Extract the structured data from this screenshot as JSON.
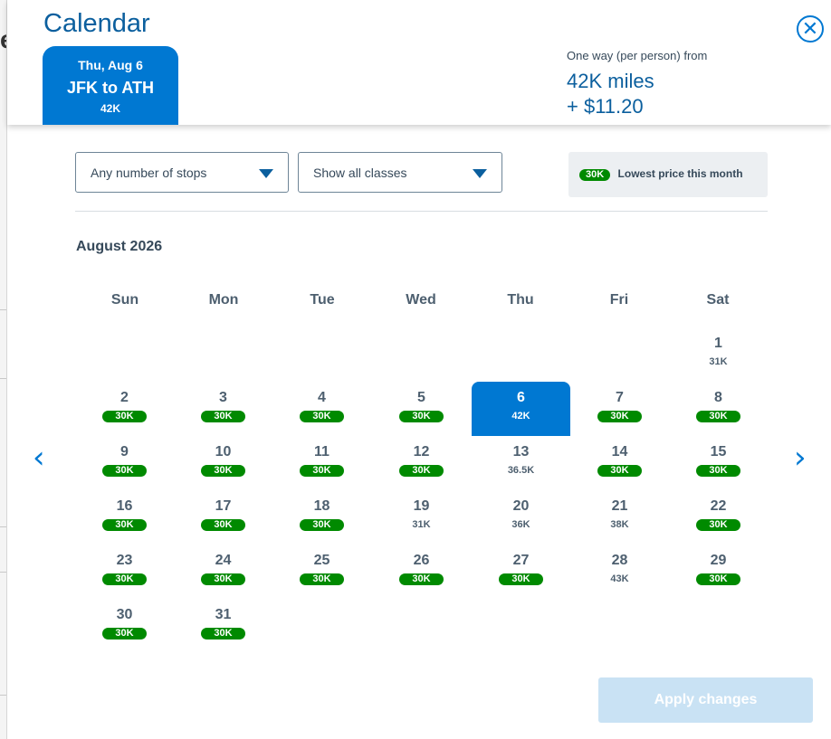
{
  "header": {
    "title": "Calendar",
    "close_label": "✕",
    "date_tab": {
      "date": "Thu, Aug 6",
      "route": "JFK to ATH",
      "price": "42K"
    },
    "fare": {
      "label": "One way (per person) from",
      "miles": "42K miles",
      "cash": "+ $11.20"
    }
  },
  "filters": {
    "stops": "Any number of stops",
    "classes": "Show all classes",
    "legend_price": "30K",
    "legend_text": "Lowest price this month"
  },
  "calendar": {
    "month_label": "August 2026",
    "weekdays": [
      "Sun",
      "Mon",
      "Tue",
      "Wed",
      "Thu",
      "Fri",
      "Sat"
    ],
    "start_weekday": 6,
    "selected_day": 6,
    "days": [
      {
        "day": "1",
        "price": "31K",
        "lowest": false
      },
      {
        "day": "2",
        "price": "30K",
        "lowest": true
      },
      {
        "day": "3",
        "price": "30K",
        "lowest": true
      },
      {
        "day": "4",
        "price": "30K",
        "lowest": true
      },
      {
        "day": "5",
        "price": "30K",
        "lowest": true
      },
      {
        "day": "6",
        "price": "42K",
        "lowest": false
      },
      {
        "day": "7",
        "price": "30K",
        "lowest": true
      },
      {
        "day": "8",
        "price": "30K",
        "lowest": true
      },
      {
        "day": "9",
        "price": "30K",
        "lowest": true
      },
      {
        "day": "10",
        "price": "30K",
        "lowest": true
      },
      {
        "day": "11",
        "price": "30K",
        "lowest": true
      },
      {
        "day": "12",
        "price": "30K",
        "lowest": true
      },
      {
        "day": "13",
        "price": "36.5K",
        "lowest": false
      },
      {
        "day": "14",
        "price": "30K",
        "lowest": true
      },
      {
        "day": "15",
        "price": "30K",
        "lowest": true
      },
      {
        "day": "16",
        "price": "30K",
        "lowest": true
      },
      {
        "day": "17",
        "price": "30K",
        "lowest": true
      },
      {
        "day": "18",
        "price": "30K",
        "lowest": true
      },
      {
        "day": "19",
        "price": "31K",
        "lowest": false
      },
      {
        "day": "20",
        "price": "36K",
        "lowest": false
      },
      {
        "day": "21",
        "price": "38K",
        "lowest": false
      },
      {
        "day": "22",
        "price": "30K",
        "lowest": true
      },
      {
        "day": "23",
        "price": "30K",
        "lowest": true
      },
      {
        "day": "24",
        "price": "30K",
        "lowest": true
      },
      {
        "day": "25",
        "price": "30K",
        "lowest": true
      },
      {
        "day": "26",
        "price": "30K",
        "lowest": true
      },
      {
        "day": "27",
        "price": "30K",
        "lowest": true
      },
      {
        "day": "28",
        "price": "43K",
        "lowest": false
      },
      {
        "day": "29",
        "price": "30K",
        "lowest": true
      },
      {
        "day": "30",
        "price": "30K",
        "lowest": true
      },
      {
        "day": "31",
        "price": "30K",
        "lowest": true
      }
    ]
  },
  "actions": {
    "apply_label": "Apply changes"
  },
  "icons": {
    "prev": "chevron-left-icon",
    "next": "chevron-right-icon",
    "close": "close-circle-icon",
    "dropdown": "caret-down-icon"
  },
  "colors": {
    "brand_blue": "#0078d2",
    "title_blue": "#0b5f9e",
    "lowest_green": "#008a00",
    "apply_disabled": "#c9e2f4"
  }
}
